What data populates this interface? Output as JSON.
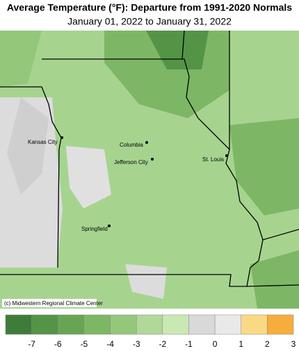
{
  "header": {
    "title": "Average Temperature (°F): Departure from 1991-2020 Normals",
    "subtitle": "January 01, 2022 to January 31, 2022"
  },
  "map": {
    "cities": [
      {
        "name": "Kansas City"
      },
      {
        "name": "Columbia"
      },
      {
        "name": "Jefferson City"
      },
      {
        "name": "St. Louis"
      },
      {
        "name": "Springfield"
      }
    ],
    "credit": "(c) Midwestern Regional Climate Center"
  },
  "legend": {
    "colors": [
      "#3e7d39",
      "#549446",
      "#68a553",
      "#7db765",
      "#95c77b",
      "#b0d898",
      "#c9e8b3",
      "#d9d9d9",
      "#e9e9e9",
      "#fbd983",
      "#f6ad3d"
    ],
    "labels": [
      -7,
      -6,
      -5,
      -4,
      -3,
      -2,
      -1,
      0,
      1,
      2,
      3
    ]
  }
}
